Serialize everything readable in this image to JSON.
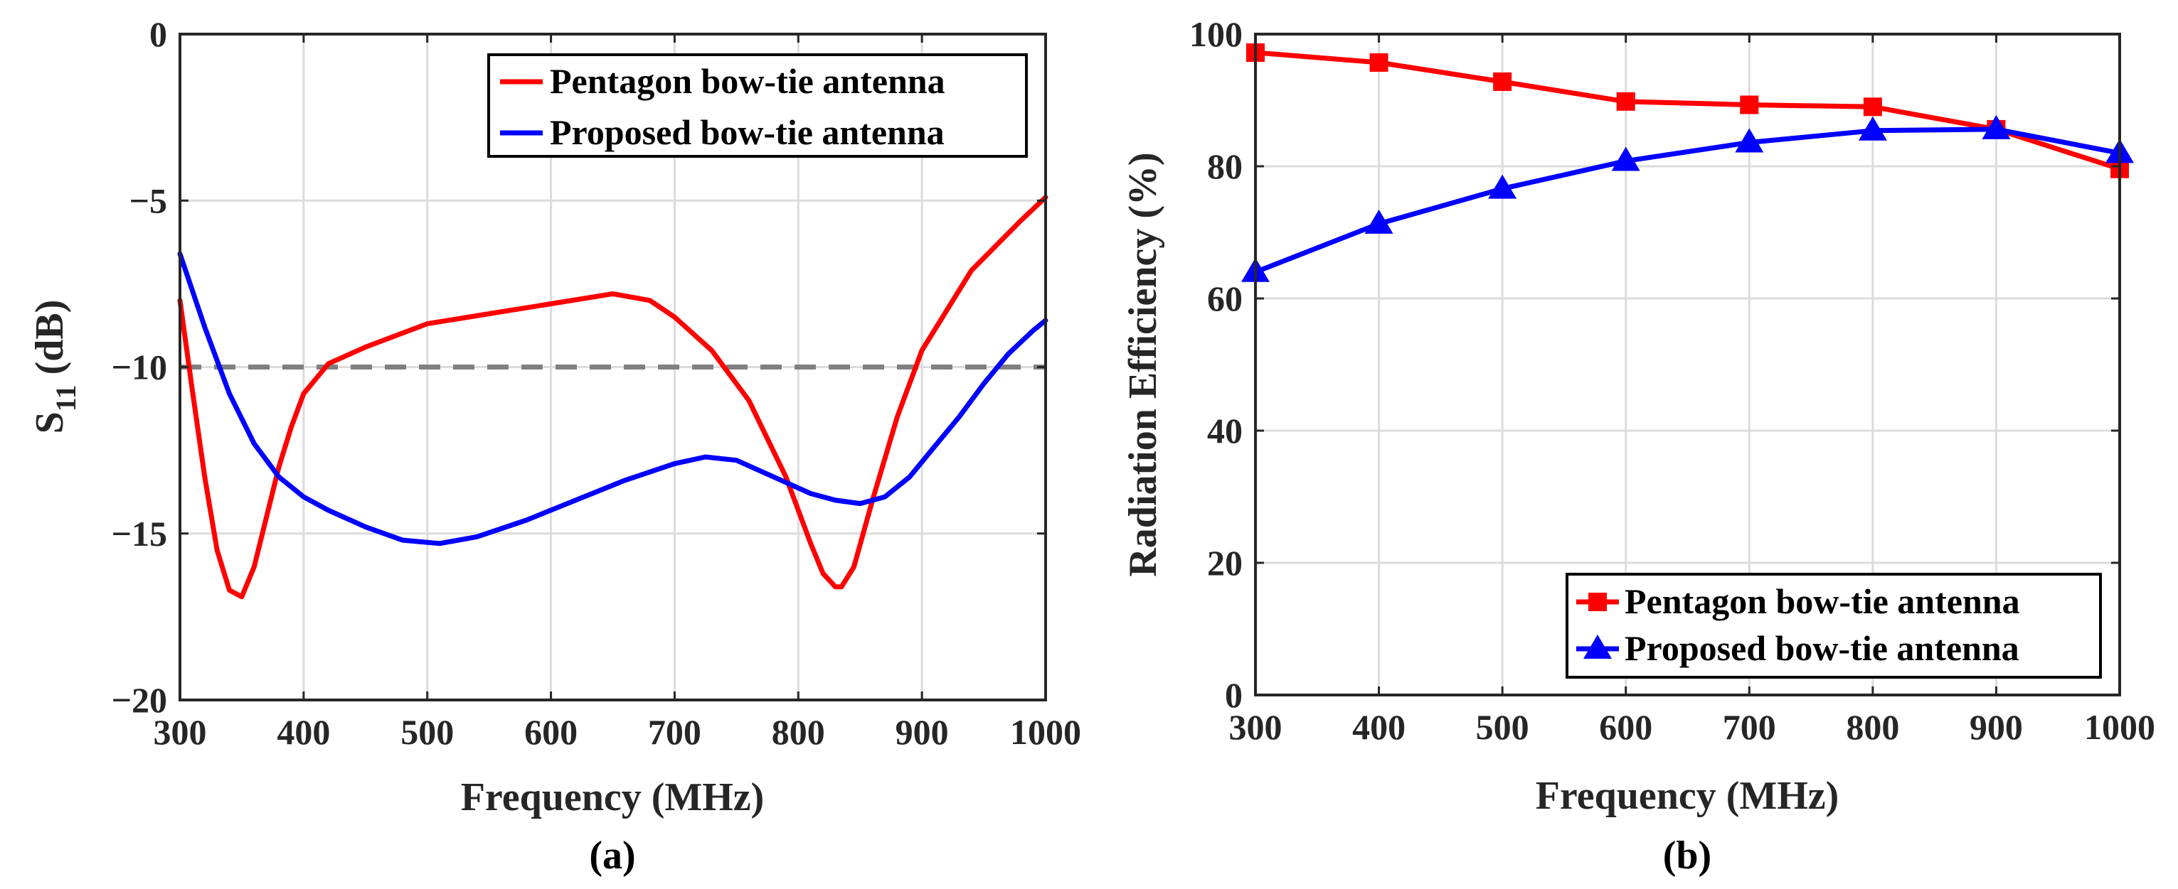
{
  "chart_data": [
    {
      "type": "line",
      "panel_label": "(a)",
      "xlabel": "Frequency (MHz)",
      "ylabel_main": "S",
      "ylabel_sub": "11",
      "ylabel_unit": " (dB)",
      "xlim": [
        300,
        1000
      ],
      "ylim": [
        -20,
        0
      ],
      "xticks": [
        300,
        400,
        500,
        600,
        700,
        800,
        900,
        1000
      ],
      "yticks": [
        0,
        -5,
        -10,
        -15,
        -20
      ],
      "ytick_labels": [
        "0",
        "−5",
        "−10",
        "−15",
        "−20"
      ],
      "grid": true,
      "legend_position": "top-right",
      "reference_line": {
        "y": -10,
        "style": "dashed",
        "color": "#808080"
      },
      "series": [
        {
          "name": "Pentagon bow-tie antenna",
          "color": "#ff0000",
          "x": [
            300,
            310,
            320,
            330,
            340,
            350,
            360,
            370,
            380,
            390,
            400,
            420,
            450,
            500,
            550,
            600,
            650,
            680,
            700,
            730,
            760,
            790,
            810,
            820,
            830,
            835,
            845,
            860,
            880,
            900,
            940,
            980,
            1000
          ],
          "y": [
            -8.0,
            -10.7,
            -13.3,
            -15.5,
            -16.7,
            -16.9,
            -16.0,
            -14.5,
            -13.0,
            -11.8,
            -10.8,
            -9.9,
            -9.4,
            -8.7,
            -8.4,
            -8.1,
            -7.8,
            -8.0,
            -8.5,
            -9.5,
            -11.0,
            -13.3,
            -15.3,
            -16.2,
            -16.6,
            -16.6,
            -16.0,
            -14.0,
            -11.5,
            -9.5,
            -7.1,
            -5.6,
            -4.9
          ]
        },
        {
          "name": "Proposed bow-tie antenna",
          "color": "#0000ff",
          "x": [
            300,
            320,
            340,
            360,
            380,
            400,
            420,
            450,
            480,
            510,
            540,
            580,
            620,
            660,
            700,
            725,
            750,
            780,
            810,
            830,
            850,
            870,
            890,
            910,
            930,
            950,
            970,
            990,
            1000
          ],
          "y": [
            -6.6,
            -8.8,
            -10.8,
            -12.3,
            -13.3,
            -13.9,
            -14.3,
            -14.8,
            -15.2,
            -15.3,
            -15.1,
            -14.6,
            -14.0,
            -13.4,
            -12.9,
            -12.7,
            -12.8,
            -13.3,
            -13.8,
            -14.0,
            -14.1,
            -13.9,
            -13.3,
            -12.4,
            -11.5,
            -10.5,
            -9.6,
            -8.9,
            -8.6
          ]
        }
      ]
    },
    {
      "type": "line",
      "panel_label": "(b)",
      "xlabel": "Frequency (MHz)",
      "ylabel": "Radiation Efficiency (%)",
      "xlim": [
        300,
        1000
      ],
      "ylim": [
        0,
        100
      ],
      "xticks": [
        300,
        400,
        500,
        600,
        700,
        800,
        900,
        1000
      ],
      "yticks": [
        0,
        20,
        40,
        60,
        80,
        100
      ],
      "grid": true,
      "legend_position": "bottom-right",
      "categories": [
        300,
        400,
        500,
        600,
        700,
        800,
        900,
        1000
      ],
      "series": [
        {
          "name": "Pentagon bow-tie antenna",
          "color": "#ff0000",
          "marker": "square",
          "values": [
            97.2,
            95.7,
            92.8,
            89.8,
            89.3,
            89.0,
            85.6,
            79.6
          ]
        },
        {
          "name": "Proposed bow-tie antenna",
          "color": "#0000ff",
          "marker": "triangle",
          "values": [
            64.0,
            71.3,
            76.6,
            80.8,
            83.6,
            85.4,
            85.6,
            82.0
          ]
        }
      ]
    }
  ]
}
